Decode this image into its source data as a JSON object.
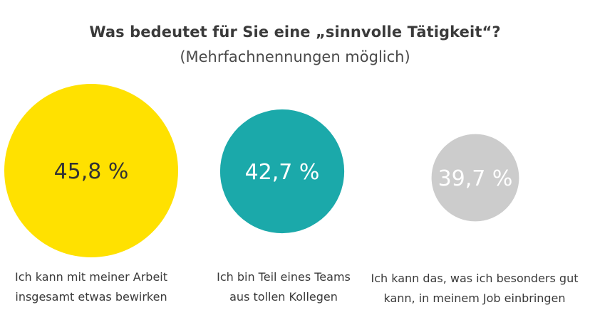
{
  "title": "Was bedeutet für Sie eine „sinnvolle Tätigkeit“?",
  "subtitle": "(Mehrfachnennungen möglich)",
  "chart_data": {
    "type": "bubble",
    "unit": "%",
    "categories": [
      "Ich kann mit meiner Arbeit insgesamt etwas bewirken",
      "Ich bin Teil eines Teams aus tollen Kollegen",
      "Ich kann das, was ich besonders gut kann, in meinem Job einbringen"
    ],
    "values": [
      45.8,
      42.7,
      39.7
    ],
    "value_labels": [
      "45,8 %",
      "42,7 %",
      "39,7 %"
    ],
    "colors": [
      "#FFE100",
      "#1BA9AA",
      "#CCCCCC"
    ],
    "value_label_colors": [
      "#333333",
      "#ffffff",
      "#ffffff"
    ],
    "label_lines": [
      [
        "Ich kann mit meiner Arbeit",
        "insgesamt etwas bewirken"
      ],
      [
        "Ich bin Teil eines Teams",
        "aus tollen Kollegen"
      ],
      [
        "Ich kann das, was ich besonders gut",
        "kann, in meinem Job einbringen"
      ]
    ]
  }
}
